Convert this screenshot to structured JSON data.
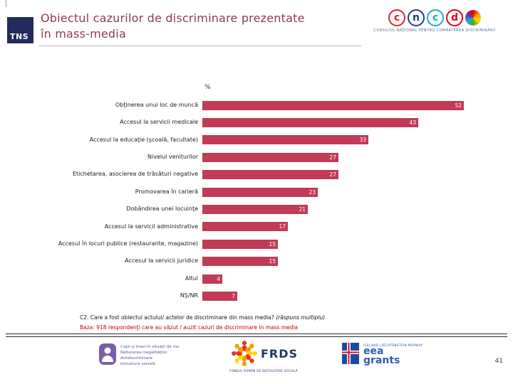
{
  "slide": {
    "title_line1": "Obiectul cazurilor de discriminare prezentate",
    "title_line2": "în mass-media",
    "page_number": "41"
  },
  "logos": {
    "tns": "TNS",
    "cncd": {
      "letters": [
        "c",
        "n",
        "c",
        "d"
      ],
      "caption": "CONSILIUL NAŢIONAL PENTRU COMBATEREA DISCRIMINĂRII"
    },
    "program": {
      "lines": [
        "Copii şi tineri în situaţii de risc",
        "Reducerea inegalităţilor",
        "Antidiscriminare",
        "Incluziune socială"
      ]
    },
    "frds": {
      "label": "FRDS",
      "caption": "FONDUL ROMÂN DE DEZVOLTARE SOCIALĂ"
    },
    "eea": {
      "countries": "ICELAND LIECHTENSTEIN NORWAY",
      "word1": "eea",
      "word2": "grants"
    }
  },
  "chart_data": {
    "type": "bar",
    "orientation": "horizontal",
    "title": "Obiectul cazurilor de discriminare prezentate în mass-media",
    "unit_label": "%",
    "categories": [
      "Obţinerea unui loc de muncă",
      "Accesul la servicii medicale",
      "Accesul la educaţie (şcoală, facultate)",
      "Nivelul veniturilor",
      "Etichetarea, asocierea de trăsături negative",
      "Promovarea în carieră",
      "Dobândirea unei locuinţe",
      "Accesul la servicii administrative",
      "Accesul în locuri publice (restaurante, magazine)",
      "Accesul la servicii juridice",
      "Altul",
      "NŞ/NR"
    ],
    "values": [
      52,
      43,
      33,
      27,
      27,
      23,
      21,
      17,
      15,
      15,
      4,
      7
    ],
    "xlim": [
      0,
      52
    ],
    "grid": false,
    "legend": false,
    "bar_color": "#C13A56",
    "value_label_color": "#ffffff"
  },
  "footnote": {
    "question": "C2. Care a fost obiectul actului/ actelor de discriminare din mass media? ",
    "question_italic": "(răspuns multiplu)",
    "base": "Baza: 918 respondenţi care au văzut / auzit cazuri de discriminare in mass media",
    "base_color": "#C00000"
  }
}
